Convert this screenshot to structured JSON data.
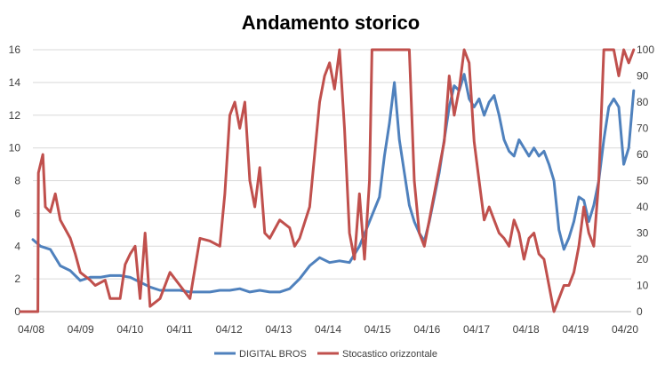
{
  "chart_data": {
    "type": "line",
    "title": "Andamento storico",
    "xlabel": "",
    "ylabel": "",
    "x_ticks": [
      "04/08",
      "04/09",
      "04/10",
      "04/11",
      "04/12",
      "04/13",
      "04/14",
      "04/15",
      "04/16",
      "04/17",
      "04/18",
      "04/19",
      "04/20"
    ],
    "y_left": {
      "ylim": [
        0,
        16
      ],
      "ticks": [
        "0",
        "2",
        "4",
        "6",
        "8",
        "10",
        "12",
        "14",
        "16"
      ]
    },
    "y_right": {
      "ylim": [
        0,
        100
      ],
      "ticks": [
        "0",
        "10",
        "20",
        "30",
        "40",
        "50",
        "60",
        "70",
        "80",
        "90",
        "100"
      ]
    },
    "grid": true,
    "legend_position": "bottom",
    "series": [
      {
        "name": "DIGITAL BROS",
        "axis": "left",
        "color": "#4f81bd",
        "x": [
          2008.25,
          2008.4,
          2008.6,
          2008.8,
          2009.0,
          2009.2,
          2009.4,
          2009.6,
          2009.8,
          2010.0,
          2010.2,
          2010.4,
          2010.6,
          2010.8,
          2011.0,
          2011.2,
          2011.4,
          2011.6,
          2011.8,
          2012.0,
          2012.2,
          2012.4,
          2012.6,
          2012.8,
          2013.0,
          2013.2,
          2013.4,
          2013.6,
          2013.8,
          2014.0,
          2014.2,
          2014.4,
          2014.6,
          2014.8,
          2015.0,
          2015.2,
          2015.3,
          2015.4,
          2015.5,
          2015.6,
          2015.7,
          2015.8,
          2015.9,
          2016.0,
          2016.1,
          2016.2,
          2016.3,
          2016.4,
          2016.5,
          2016.6,
          2016.7,
          2016.8,
          2016.9,
          2017.0,
          2017.1,
          2017.2,
          2017.3,
          2017.4,
          2017.5,
          2017.6,
          2017.7,
          2017.8,
          2017.9,
          2018.0,
          2018.1,
          2018.2,
          2018.3,
          2018.4,
          2018.5,
          2018.6,
          2018.7,
          2018.8,
          2018.9,
          2019.0,
          2019.1,
          2019.2,
          2019.3,
          2019.4,
          2019.5,
          2019.6,
          2019.7,
          2019.8,
          2019.9,
          2020.0,
          2020.1,
          2020.2,
          2020.3
        ],
        "y": [
          4.4,
          4.0,
          3.8,
          2.8,
          2.5,
          1.9,
          2.1,
          2.1,
          2.2,
          2.2,
          2.1,
          1.8,
          1.5,
          1.3,
          1.3,
          1.3,
          1.2,
          1.2,
          1.2,
          1.3,
          1.3,
          1.4,
          1.2,
          1.3,
          1.2,
          1.2,
          1.4,
          2.0,
          2.8,
          3.3,
          3.0,
          3.1,
          3.0,
          4.0,
          5.5,
          7.0,
          9.5,
          11.5,
          14.0,
          10.5,
          8.5,
          6.5,
          5.5,
          4.8,
          4.3,
          5.5,
          7.0,
          8.5,
          10.5,
          12.5,
          13.8,
          13.5,
          14.5,
          13.0,
          12.5,
          13.0,
          12.0,
          12.8,
          13.2,
          12.0,
          10.5,
          9.8,
          9.5,
          10.5,
          10.0,
          9.5,
          10.0,
          9.5,
          9.8,
          9.0,
          8.0,
          5.0,
          3.8,
          4.5,
          5.5,
          7.0,
          6.8,
          5.5,
          6.5,
          8.0,
          10.5,
          12.5,
          13.0,
          12.5,
          9.0,
          10.0,
          13.5
        ]
      },
      {
        "name": "Stocastico orizzontale",
        "axis": "right",
        "color": "#c0504d",
        "x": [
          2008.0,
          2008.35,
          2008.36,
          2008.45,
          2008.5,
          2008.6,
          2008.7,
          2008.8,
          2009.0,
          2009.1,
          2009.2,
          2009.4,
          2009.5,
          2009.7,
          2009.8,
          2010.0,
          2010.1,
          2010.2,
          2010.3,
          2010.4,
          2010.5,
          2010.6,
          2010.8,
          2011.0,
          2011.2,
          2011.4,
          2011.6,
          2011.8,
          2012.0,
          2012.1,
          2012.2,
          2012.3,
          2012.4,
          2012.5,
          2012.6,
          2012.7,
          2012.8,
          2012.9,
          2013.0,
          2013.2,
          2013.4,
          2013.5,
          2013.6,
          2013.8,
          2013.9,
          2014.0,
          2014.1,
          2014.2,
          2014.3,
          2014.4,
          2014.5,
          2014.6,
          2014.7,
          2014.8,
          2014.9,
          2015.0,
          2015.05,
          2015.1,
          2015.2,
          2015.4,
          2015.6,
          2015.8,
          2015.9,
          2016.0,
          2016.1,
          2016.2,
          2016.3,
          2016.4,
          2016.5,
          2016.6,
          2016.7,
          2016.8,
          2016.9,
          2017.0,
          2017.1,
          2017.2,
          2017.3,
          2017.4,
          2017.5,
          2017.6,
          2017.7,
          2017.8,
          2017.9,
          2018.0,
          2018.1,
          2018.2,
          2018.3,
          2018.4,
          2018.5,
          2018.6,
          2018.7,
          2018.8,
          2018.9,
          2019.0,
          2019.1,
          2019.2,
          2019.3,
          2019.4,
          2019.5,
          2019.6,
          2019.7,
          2019.75,
          2019.8,
          2019.9,
          2020.0,
          2020.1,
          2020.2,
          2020.3
        ],
        "y": [
          0,
          0,
          53,
          60,
          40,
          38,
          45,
          35,
          28,
          22,
          15,
          12,
          10,
          12,
          5,
          5,
          18,
          22,
          25,
          5,
          30,
          2,
          5,
          15,
          10,
          5,
          28,
          27,
          25,
          45,
          75,
          80,
          70,
          80,
          50,
          40,
          55,
          30,
          28,
          35,
          32,
          25,
          28,
          40,
          60,
          80,
          90,
          95,
          85,
          100,
          70,
          30,
          20,
          45,
          20,
          50,
          100,
          100,
          100,
          100,
          100,
          100,
          50,
          30,
          25,
          35,
          45,
          55,
          65,
          90,
          75,
          85,
          100,
          95,
          65,
          50,
          35,
          40,
          35,
          30,
          28,
          25,
          35,
          30,
          20,
          28,
          30,
          22,
          20,
          10,
          0,
          5,
          10,
          10,
          15,
          25,
          40,
          30,
          25,
          50,
          100,
          100,
          100,
          100,
          90,
          100,
          95,
          100
        ]
      }
    ]
  }
}
